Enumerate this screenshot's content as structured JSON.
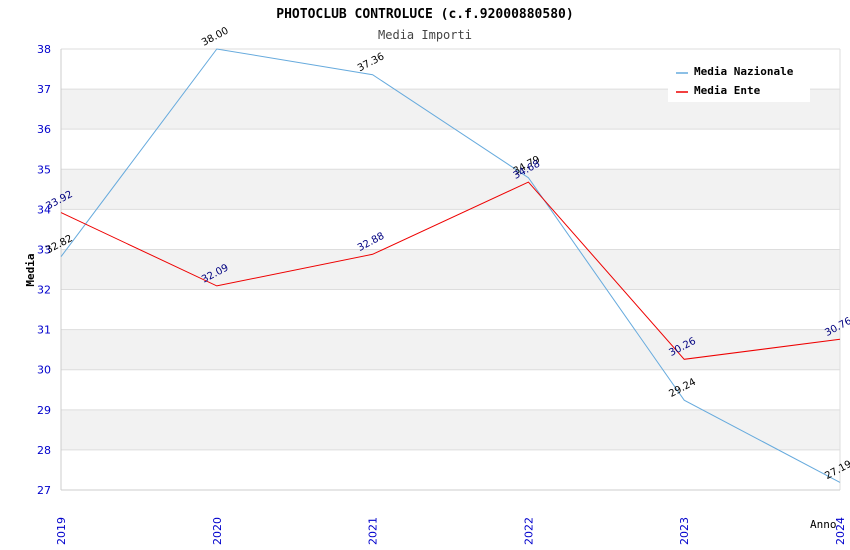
{
  "chart_data": {
    "type": "line",
    "title": "PHOTOCLUB CONTROLUCE (c.f.92000880580)",
    "subtitle": "Media Importi",
    "xlabel": "Anno",
    "ylabel": "Media",
    "categories": [
      "2019",
      "2020",
      "2021",
      "2022",
      "2023",
      "2024"
    ],
    "ylim": [
      27,
      38
    ],
    "yticks": [
      "27",
      "28",
      "29",
      "30",
      "31",
      "32",
      "33",
      "34",
      "35",
      "36",
      "37",
      "38"
    ],
    "series": [
      {
        "name": "Media Nazionale",
        "color": "#66aadd",
        "label_color": "#000000",
        "values": [
          32.82,
          38.0,
          37.36,
          34.79,
          29.24,
          27.19
        ],
        "labels": [
          "32.82",
          "38.00",
          "37.36",
          "34.79",
          "29.24",
          "27.19"
        ]
      },
      {
        "name": "Media Ente",
        "color": "#ee0000",
        "label_color": "#000080",
        "values": [
          33.92,
          32.09,
          32.88,
          34.68,
          30.26,
          30.76
        ],
        "labels": [
          "33.92",
          "32.09",
          "32.88",
          "34.68",
          "30.26",
          "30.76"
        ]
      }
    ],
    "legend": "top-right",
    "grid": true
  }
}
